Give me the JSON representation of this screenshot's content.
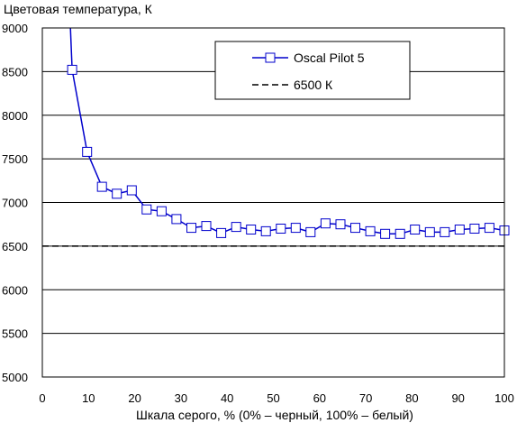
{
  "chart_data": {
    "type": "line",
    "ylabel": "Цветовая температура, К",
    "xlabel": "Шкала серого, % (0% – черный, 100% – белый)",
    "xlim": [
      0,
      100
    ],
    "ylim": [
      5000,
      9000
    ],
    "x_ticks": [
      0,
      10,
      20,
      30,
      40,
      50,
      60,
      70,
      80,
      90,
      100
    ],
    "y_ticks": [
      5000,
      5500,
      6000,
      6500,
      7000,
      7500,
      8000,
      8500,
      9000
    ],
    "grid": "horizontal",
    "legend_position": "top-right",
    "colors": {
      "series": "#0000cc",
      "reference": "#000000",
      "grid": "#000000"
    },
    "series": [
      {
        "name": "Oscal Pilot 5",
        "style": "line-square-markers",
        "x": [
          6.45,
          9.68,
          12.9,
          16.13,
          19.35,
          22.58,
          25.81,
          29.03,
          32.26,
          35.48,
          38.71,
          41.94,
          45.16,
          48.39,
          51.61,
          54.84,
          58.06,
          61.29,
          64.52,
          67.74,
          70.97,
          74.19,
          77.42,
          80.65,
          83.87,
          87.1,
          90.32,
          93.55,
          96.77,
          100
        ],
        "y": [
          8520,
          7580,
          7180,
          7100,
          7140,
          6920,
          6900,
          6810,
          6710,
          6730,
          6650,
          6720,
          6690,
          6670,
          6700,
          6710,
          6660,
          6760,
          6750,
          6710,
          6670,
          6640,
          6640,
          6690,
          6660,
          6660,
          6690,
          6700,
          6710,
          6680
        ]
      }
    ],
    "reference_line": {
      "name": "6500 К",
      "y": 6500,
      "style": "dashed"
    },
    "offscreen_point": {
      "x": 6.0,
      "y": 9100
    }
  }
}
